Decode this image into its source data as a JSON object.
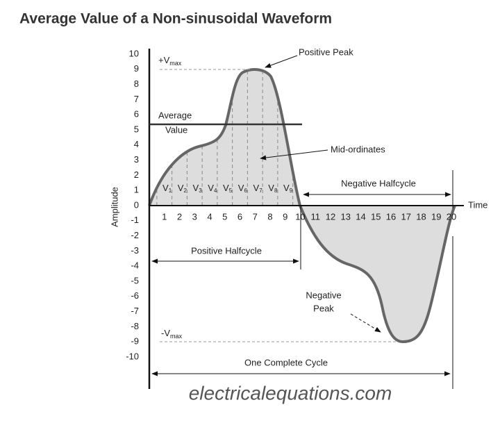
{
  "header": {
    "title": "Average Value of a Non-sinusoidal Waveform"
  },
  "axes": {
    "y_label": "Amplitude",
    "x_label": "Time",
    "y_ticks": [
      "10",
      "9",
      "8",
      "7",
      "6",
      "5",
      "4",
      "3",
      "2",
      "1",
      "0",
      "-1",
      "-2",
      "-3",
      "-4",
      "-5",
      "-6",
      "-7",
      "-8",
      "-9",
      "-10"
    ],
    "x_ticks": [
      "1",
      "2",
      "3",
      "4",
      "5",
      "6",
      "7",
      "8",
      "9",
      "10",
      "11",
      "12",
      "13",
      "14",
      "15",
      "16",
      "17",
      "18",
      "19",
      "20"
    ]
  },
  "mid_labels": [
    {
      "v": "V",
      "sub": "1"
    },
    {
      "v": "V",
      "sub": "2"
    },
    {
      "v": "V",
      "sub": "3"
    },
    {
      "v": "V",
      "sub": "4"
    },
    {
      "v": "V",
      "sub": "5"
    },
    {
      "v": "V",
      "sub": "6"
    },
    {
      "v": "V",
      "sub": "7"
    },
    {
      "v": "V",
      "sub": "8"
    },
    {
      "v": "V",
      "sub": "9"
    }
  ],
  "annotations": {
    "vmax_pos": {
      "main": "+V",
      "sub": "max"
    },
    "vmax_neg": {
      "main": "-V",
      "sub": "max"
    },
    "positive_peak": "Positive Peak",
    "average_1": "Average",
    "average_2": "Value",
    "mid_ordinates": "Mid-ordinates",
    "negative_halfcycle": "Negative Halfcycle",
    "positive_halfcycle": "Positive Halfcycle",
    "negative_peak_1": "Negative",
    "negative_peak_2": "Peak",
    "complete_cycle": "One Complete Cycle"
  },
  "footer": {
    "watermark": "electricalequations.com"
  }
}
